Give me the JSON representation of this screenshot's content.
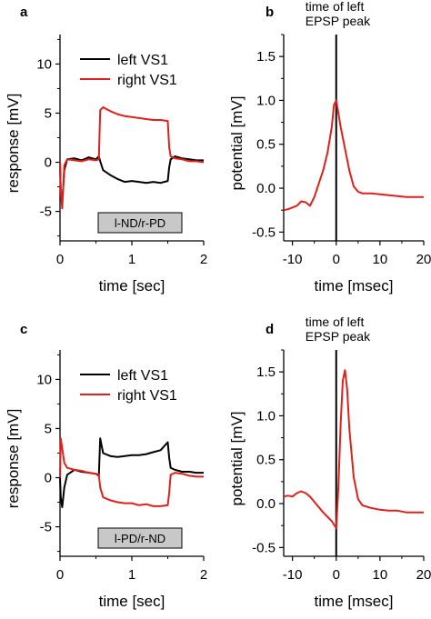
{
  "colors": {
    "left": "#000000",
    "right": "#e0201b",
    "box_fill": "#c8c8c8"
  },
  "chart_data": [
    {
      "panel": "a",
      "type": "line",
      "xlabel": "time [sec]",
      "ylabel": "response [mV]",
      "xlim": [
        0,
        2
      ],
      "ylim": [
        -8,
        13
      ],
      "xticks": [
        "0",
        "1",
        "2"
      ],
      "yticks": [
        "10",
        "5",
        "0",
        "-5"
      ],
      "legend_placement": "top-right",
      "condition": "l-ND/r-PD",
      "series": [
        {
          "name": "left VS1",
          "color": "#000000",
          "x": [
            0,
            0.01,
            0.03,
            0.06,
            0.1,
            0.2,
            0.3,
            0.4,
            0.5,
            0.54,
            0.56,
            0.6,
            0.7,
            0.8,
            0.9,
            1.0,
            1.1,
            1.2,
            1.3,
            1.4,
            1.5,
            1.52,
            1.54,
            1.6,
            1.7,
            1.8,
            1.9,
            2.0
          ],
          "y": [
            0,
            -3,
            -4.2,
            -0.8,
            0.3,
            0.4,
            0.2,
            0.5,
            0.3,
            0.6,
            0.1,
            -0.8,
            -1.3,
            -1.7,
            -2,
            -1.9,
            -2,
            -2.1,
            -2,
            -2.1,
            -1.9,
            -0.5,
            0.3,
            0.6,
            0.4,
            0.3,
            0.2,
            0.2
          ]
        },
        {
          "name": "right VS1",
          "color": "#e0201b",
          "x": [
            0,
            0.01,
            0.03,
            0.06,
            0.1,
            0.2,
            0.3,
            0.4,
            0.5,
            0.54,
            0.56,
            0.6,
            0.7,
            0.8,
            0.9,
            1.0,
            1.1,
            1.2,
            1.3,
            1.4,
            1.5,
            1.52,
            1.54,
            1.6,
            1.7,
            1.8,
            1.9,
            2.0
          ],
          "y": [
            0,
            -3,
            -4.7,
            -0.3,
            0.3,
            0.2,
            0.1,
            0.3,
            0.2,
            0.3,
            5.3,
            5.6,
            5.2,
            4.9,
            4.7,
            4.6,
            4.5,
            4.4,
            4.3,
            4.3,
            4.2,
            1.5,
            0.6,
            0.4,
            0.3,
            0.1,
            0.1,
            0
          ]
        }
      ]
    },
    {
      "panel": "b",
      "type": "line",
      "xlabel": "time [msec]",
      "ylabel": "potential [mV]",
      "xlim": [
        -12,
        20
      ],
      "ylim": [
        -0.6,
        1.75
      ],
      "xticks": [
        "-10",
        "0",
        "10",
        "20"
      ],
      "yticks": [
        "1.5",
        "1.0",
        "0.5",
        "0.0",
        "-0.5"
      ],
      "annotation": [
        "time of left",
        "EPSP peak"
      ],
      "vline_x": 0,
      "series": [
        {
          "color": "#e0201b",
          "x": [
            -12,
            -11,
            -10,
            -9,
            -8,
            -7,
            -6,
            -5,
            -4,
            -3,
            -2,
            -1,
            -0.5,
            0,
            0.5,
            1,
            2,
            3,
            4,
            5,
            6,
            8,
            10,
            12,
            14,
            16,
            18,
            20
          ],
          "y": [
            -0.25,
            -0.24,
            -0.22,
            -0.2,
            -0.15,
            -0.16,
            -0.2,
            -0.1,
            0.05,
            0.2,
            0.4,
            0.7,
            0.95,
            1.0,
            0.85,
            0.7,
            0.45,
            0.2,
            0.02,
            -0.04,
            -0.06,
            -0.06,
            -0.07,
            -0.08,
            -0.09,
            -0.1,
            -0.1,
            -0.1
          ]
        }
      ]
    },
    {
      "panel": "c",
      "type": "line",
      "xlabel": "time [sec]",
      "ylabel": "response [mV]",
      "xlim": [
        0,
        2
      ],
      "ylim": [
        -8,
        13
      ],
      "xticks": [
        "0",
        "1",
        "2"
      ],
      "yticks": [
        "10",
        "5",
        "0",
        "-5"
      ],
      "legend_placement": "top-right",
      "condition": "l-PD/r-ND",
      "series": [
        {
          "name": "left VS1",
          "color": "#000000",
          "x": [
            0,
            0.01,
            0.03,
            0.06,
            0.1,
            0.2,
            0.3,
            0.4,
            0.5,
            0.54,
            0.56,
            0.6,
            0.7,
            0.8,
            0.9,
            1.0,
            1.1,
            1.2,
            1.3,
            1.4,
            1.5,
            1.52,
            1.54,
            1.6,
            1.7,
            1.8,
            1.9,
            2.0
          ],
          "y": [
            0,
            -2,
            -3,
            -1,
            0.3,
            0.8,
            0.6,
            0.5,
            0.4,
            0.2,
            4,
            2.5,
            2.2,
            2.1,
            2.2,
            2.3,
            2.3,
            2.4,
            2.6,
            2.8,
            3.6,
            2,
            1,
            0.8,
            0.6,
            0.6,
            0.5,
            0.5
          ]
        },
        {
          "name": "right VS1",
          "color": "#e0201b",
          "x": [
            0,
            0.01,
            0.03,
            0.06,
            0.1,
            0.2,
            0.3,
            0.4,
            0.5,
            0.54,
            0.56,
            0.6,
            0.7,
            0.8,
            0.9,
            1.0,
            1.1,
            1.2,
            1.3,
            1.4,
            1.5,
            1.52,
            1.54,
            1.6,
            1.7,
            1.8,
            1.9,
            2.0
          ],
          "y": [
            0,
            4,
            3,
            1.5,
            1,
            0.8,
            0.7,
            0.5,
            0.4,
            0.3,
            -1,
            -2,
            -2.3,
            -2.5,
            -2.6,
            -2.6,
            -2.8,
            -2.7,
            -2.9,
            -2.9,
            -2.8,
            -1.5,
            0.3,
            0.5,
            0.4,
            0.2,
            0.1,
            0.1
          ]
        }
      ]
    },
    {
      "panel": "d",
      "type": "line",
      "xlabel": "time [msec]",
      "ylabel": "potential [mV]",
      "xlim": [
        -12,
        20
      ],
      "ylim": [
        -0.6,
        1.75
      ],
      "xticks": [
        "-10",
        "0",
        "10",
        "20"
      ],
      "yticks": [
        "1.5",
        "1.0",
        "0.5",
        "0.0",
        "-0.5"
      ],
      "annotation": [
        "time of left",
        "EPSP peak"
      ],
      "vline_x": 0,
      "series": [
        {
          "color": "#e0201b",
          "x": [
            -12,
            -11,
            -10,
            -9,
            -8,
            -7,
            -6,
            -5,
            -4,
            -3,
            -2,
            -1,
            0,
            0.5,
            1,
            1.5,
            2,
            2.5,
            3,
            4,
            5,
            6,
            8,
            10,
            12,
            14,
            16,
            18,
            20
          ],
          "y": [
            0.08,
            0.09,
            0.08,
            0.12,
            0.14,
            0.12,
            0.08,
            0.02,
            -0.04,
            -0.1,
            -0.15,
            -0.2,
            -0.28,
            0.2,
            0.9,
            1.4,
            1.52,
            1.3,
            0.85,
            0.3,
            0.05,
            -0.02,
            -0.05,
            -0.07,
            -0.08,
            -0.08,
            -0.1,
            -0.1,
            -0.1
          ]
        }
      ]
    }
  ]
}
